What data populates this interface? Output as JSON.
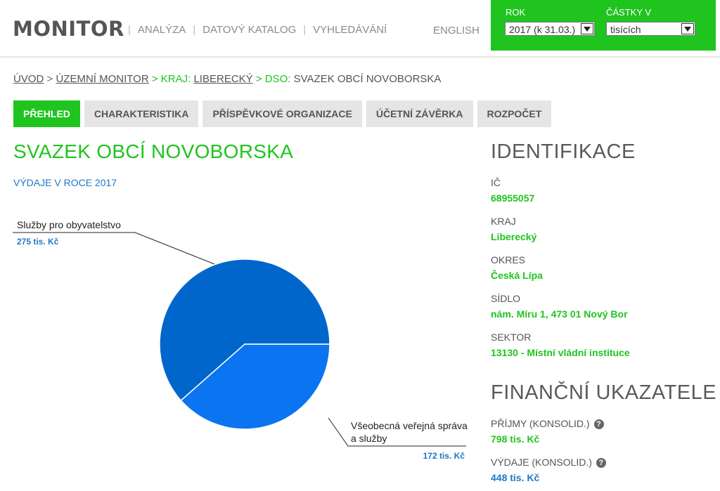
{
  "header": {
    "logo": "MONITOR",
    "nav": [
      "ANALÝZA",
      "DATOVÝ KATALOG",
      "VYHLEDÁVÁNÍ"
    ],
    "lang": "ENGLISH",
    "filters": {
      "year_label": "ROK",
      "year_value": "2017 (k 31.03.)",
      "amount_label": "ČÁSTKY V",
      "amount_value": "tisících"
    }
  },
  "breadcrumb": {
    "home": "ÚVOD",
    "territorial": "ÚZEMNÍ MONITOR",
    "region_prefix": "KRAJ:",
    "region": "LIBERECKÝ",
    "dso_prefix": "DSO:",
    "current": "SVAZEK OBCÍ NOVOBORSKA",
    "sep": ">"
  },
  "tabs": [
    "PŘEHLED",
    "CHARAKTERISTIKA",
    "PŘÍSPĚVKOVÉ ORGANIZACE",
    "ÚČETNÍ ZÁVĚRKA",
    "ROZPOČET"
  ],
  "main": {
    "title": "SVAZEK OBCÍ NOVOBORSKA",
    "subtitle": "VÝDAJE V ROCE 2017"
  },
  "chart_data": {
    "type": "pie",
    "slices": [
      {
        "label": "Služby pro obyvatelstvo",
        "value": 275,
        "value_label": "275 tis. Kč",
        "color": "#0066cc"
      },
      {
        "label_lines": [
          "Všeobecná veřejná správa",
          "a služby"
        ],
        "value": 172,
        "value_label": "172 tis. Kč",
        "color": "#0b74f0"
      }
    ]
  },
  "identification": {
    "heading": "IDENTIFIKACE",
    "ic_label": "IČ",
    "ic_value": "68955057",
    "region_label": "KRAJ",
    "region_value": "Liberecký",
    "district_label": "OKRES",
    "district_value": "Česká Lípa",
    "seat_label": "SÍDLO",
    "seat_value": "nám. Míru 1, 473 01 Nový Bor",
    "sector_label": "SEKTOR",
    "sector_value": "13130 - Místní vládní instituce"
  },
  "financial": {
    "heading": "FINANČNÍ UKAZATELE",
    "income_label": "PŘÍJMY (KONSOLID.)",
    "income_value": "798 tis. Kč",
    "expense_label": "VÝDAJE (KONSOLID.)",
    "expense_value": "448 tis. Kč",
    "help_glyph": "?"
  },
  "colors": {
    "brand_green": "#1fc41f",
    "link_blue": "#1e78c8"
  }
}
